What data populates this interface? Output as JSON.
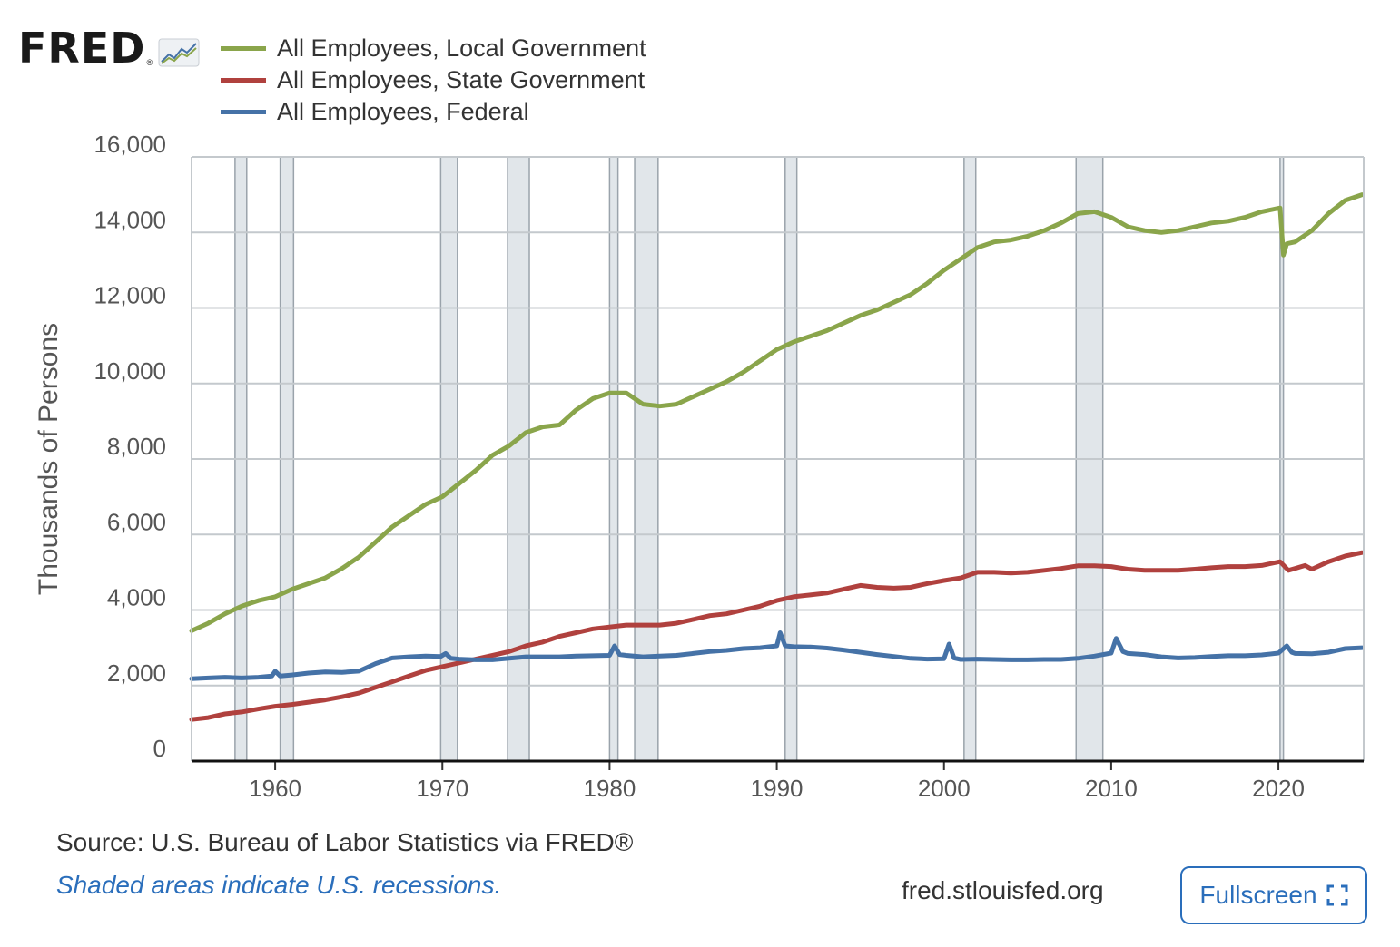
{
  "logo": {
    "text": "FRED",
    "reg": "®"
  },
  "legend": [
    {
      "label": "All Employees, Local Government",
      "color": "#8aa54b"
    },
    {
      "label": "All Employees, State Government",
      "color": "#b0413e"
    },
    {
      "label": "All Employees, Federal",
      "color": "#4572a7"
    }
  ],
  "footer": {
    "source": "Source: U.S. Bureau of Labor Statistics via FRED®",
    "shaded_note": "Shaded areas indicate U.S. recessions.",
    "url": "fred.stlouisfed.org",
    "fullscreen_label": "Fullscreen"
  },
  "chart_data": {
    "type": "line",
    "title": "",
    "xlabel": "",
    "ylabel": "Thousands of Persons",
    "xlim": [
      1955.0,
      2025.1
    ],
    "ylim": [
      0,
      16000
    ],
    "yticks": [
      0,
      2000,
      4000,
      6000,
      8000,
      10000,
      12000,
      14000,
      16000
    ],
    "ytick_labels": [
      "0",
      "2,000",
      "4,000",
      "6,000",
      "8,000",
      "10,000",
      "12,000",
      "14,000",
      "16,000"
    ],
    "xticks": [
      1960,
      1970,
      1980,
      1990,
      2000,
      2010,
      2020
    ],
    "xtick_labels": [
      "1960",
      "1970",
      "1980",
      "1990",
      "2000",
      "2010",
      "2020"
    ],
    "recessions": [
      [
        1957.6,
        1958.3
      ],
      [
        1960.3,
        1961.1
      ],
      [
        1969.9,
        1970.9
      ],
      [
        1973.9,
        1975.2
      ],
      [
        1980.0,
        1980.5
      ],
      [
        1981.5,
        1982.9
      ],
      [
        1990.5,
        1991.2
      ],
      [
        2001.2,
        2001.9
      ],
      [
        2007.9,
        2009.5
      ],
      [
        2020.1,
        2020.3
      ]
    ],
    "series": [
      {
        "name": "All Employees, Local Government",
        "color": "#8aa54b",
        "points": [
          [
            1955.0,
            3450
          ],
          [
            1956.0,
            3650
          ],
          [
            1957.0,
            3900
          ],
          [
            1958.0,
            4100
          ],
          [
            1959.0,
            4250
          ],
          [
            1960.0,
            4350
          ],
          [
            1961.0,
            4550
          ],
          [
            1962.0,
            4700
          ],
          [
            1963.0,
            4850
          ],
          [
            1964.0,
            5100
          ],
          [
            1965.0,
            5400
          ],
          [
            1966.0,
            5800
          ],
          [
            1967.0,
            6200
          ],
          [
            1968.0,
            6500
          ],
          [
            1969.0,
            6800
          ],
          [
            1970.0,
            7000
          ],
          [
            1971.0,
            7350
          ],
          [
            1972.0,
            7700
          ],
          [
            1973.0,
            8100
          ],
          [
            1974.0,
            8350
          ],
          [
            1975.0,
            8700
          ],
          [
            1976.0,
            8850
          ],
          [
            1977.0,
            8900
          ],
          [
            1978.0,
            9300
          ],
          [
            1979.0,
            9600
          ],
          [
            1980.0,
            9750
          ],
          [
            1981.0,
            9750
          ],
          [
            1982.0,
            9450
          ],
          [
            1983.0,
            9400
          ],
          [
            1984.0,
            9450
          ],
          [
            1985.0,
            9650
          ],
          [
            1986.0,
            9850
          ],
          [
            1987.0,
            10050
          ],
          [
            1988.0,
            10300
          ],
          [
            1989.0,
            10600
          ],
          [
            1990.0,
            10900
          ],
          [
            1991.0,
            11100
          ],
          [
            1992.0,
            11250
          ],
          [
            1993.0,
            11400
          ],
          [
            1994.0,
            11600
          ],
          [
            1995.0,
            11800
          ],
          [
            1996.0,
            11950
          ],
          [
            1997.0,
            12150
          ],
          [
            1998.0,
            12350
          ],
          [
            1999.0,
            12650
          ],
          [
            2000.0,
            13000
          ],
          [
            2001.0,
            13300
          ],
          [
            2002.0,
            13600
          ],
          [
            2003.0,
            13750
          ],
          [
            2004.0,
            13800
          ],
          [
            2005.0,
            13900
          ],
          [
            2006.0,
            14050
          ],
          [
            2007.0,
            14250
          ],
          [
            2008.0,
            14500
          ],
          [
            2009.0,
            14550
          ],
          [
            2010.0,
            14400
          ],
          [
            2011.0,
            14150
          ],
          [
            2012.0,
            14050
          ],
          [
            2013.0,
            14000
          ],
          [
            2014.0,
            14050
          ],
          [
            2015.0,
            14150
          ],
          [
            2016.0,
            14250
          ],
          [
            2017.0,
            14300
          ],
          [
            2018.0,
            14400
          ],
          [
            2019.0,
            14550
          ],
          [
            2020.1,
            14650
          ],
          [
            2020.3,
            13400
          ],
          [
            2020.5,
            13700
          ],
          [
            2021.0,
            13750
          ],
          [
            2022.0,
            14050
          ],
          [
            2023.0,
            14500
          ],
          [
            2024.0,
            14850
          ],
          [
            2025.0,
            15000
          ]
        ]
      },
      {
        "name": "All Employees, State Government",
        "color": "#b0413e",
        "points": [
          [
            1955.0,
            1100
          ],
          [
            1956.0,
            1150
          ],
          [
            1957.0,
            1250
          ],
          [
            1958.0,
            1300
          ],
          [
            1959.0,
            1380
          ],
          [
            1960.0,
            1450
          ],
          [
            1961.0,
            1500
          ],
          [
            1962.0,
            1560
          ],
          [
            1963.0,
            1620
          ],
          [
            1964.0,
            1700
          ],
          [
            1965.0,
            1800
          ],
          [
            1966.0,
            1950
          ],
          [
            1967.0,
            2100
          ],
          [
            1968.0,
            2250
          ],
          [
            1969.0,
            2400
          ],
          [
            1970.0,
            2500
          ],
          [
            1971.0,
            2600
          ],
          [
            1972.0,
            2700
          ],
          [
            1973.0,
            2800
          ],
          [
            1974.0,
            2900
          ],
          [
            1975.0,
            3050
          ],
          [
            1976.0,
            3150
          ],
          [
            1977.0,
            3300
          ],
          [
            1978.0,
            3400
          ],
          [
            1979.0,
            3500
          ],
          [
            1980.0,
            3550
          ],
          [
            1981.0,
            3600
          ],
          [
            1982.0,
            3600
          ],
          [
            1983.0,
            3600
          ],
          [
            1984.0,
            3650
          ],
          [
            1985.0,
            3750
          ],
          [
            1986.0,
            3850
          ],
          [
            1987.0,
            3900
          ],
          [
            1988.0,
            4000
          ],
          [
            1989.0,
            4100
          ],
          [
            1990.0,
            4250
          ],
          [
            1991.0,
            4350
          ],
          [
            1992.0,
            4400
          ],
          [
            1993.0,
            4450
          ],
          [
            1994.0,
            4550
          ],
          [
            1995.0,
            4650
          ],
          [
            1996.0,
            4600
          ],
          [
            1997.0,
            4580
          ],
          [
            1998.0,
            4600
          ],
          [
            1999.0,
            4700
          ],
          [
            2000.0,
            4780
          ],
          [
            2001.0,
            4850
          ],
          [
            2002.0,
            5000
          ],
          [
            2003.0,
            5000
          ],
          [
            2004.0,
            4980
          ],
          [
            2005.0,
            5000
          ],
          [
            2006.0,
            5050
          ],
          [
            2007.0,
            5100
          ],
          [
            2008.0,
            5170
          ],
          [
            2009.0,
            5170
          ],
          [
            2010.0,
            5150
          ],
          [
            2011.0,
            5080
          ],
          [
            2012.0,
            5050
          ],
          [
            2013.0,
            5050
          ],
          [
            2014.0,
            5050
          ],
          [
            2015.0,
            5080
          ],
          [
            2016.0,
            5120
          ],
          [
            2017.0,
            5150
          ],
          [
            2018.0,
            5150
          ],
          [
            2019.0,
            5180
          ],
          [
            2020.1,
            5280
          ],
          [
            2020.6,
            5050
          ],
          [
            2021.0,
            5100
          ],
          [
            2021.6,
            5180
          ],
          [
            2022.0,
            5080
          ],
          [
            2023.0,
            5280
          ],
          [
            2024.0,
            5430
          ],
          [
            2025.0,
            5520
          ]
        ]
      },
      {
        "name": "All Employees, Federal",
        "color": "#4572a7",
        "points": [
          [
            1955.0,
            2180
          ],
          [
            1956.0,
            2200
          ],
          [
            1957.0,
            2220
          ],
          [
            1958.0,
            2200
          ],
          [
            1959.0,
            2220
          ],
          [
            1959.8,
            2250
          ],
          [
            1960.0,
            2380
          ],
          [
            1960.3,
            2250
          ],
          [
            1961.0,
            2280
          ],
          [
            1962.0,
            2330
          ],
          [
            1963.0,
            2360
          ],
          [
            1964.0,
            2350
          ],
          [
            1965.0,
            2380
          ],
          [
            1966.0,
            2580
          ],
          [
            1967.0,
            2730
          ],
          [
            1968.0,
            2760
          ],
          [
            1969.0,
            2780
          ],
          [
            1969.9,
            2770
          ],
          [
            1970.2,
            2850
          ],
          [
            1970.5,
            2720
          ],
          [
            1971.0,
            2700
          ],
          [
            1972.0,
            2680
          ],
          [
            1973.0,
            2680
          ],
          [
            1974.0,
            2720
          ],
          [
            1975.0,
            2760
          ],
          [
            1976.0,
            2760
          ],
          [
            1977.0,
            2760
          ],
          [
            1978.0,
            2780
          ],
          [
            1979.0,
            2790
          ],
          [
            1980.0,
            2800
          ],
          [
            1980.3,
            3050
          ],
          [
            1980.6,
            2820
          ],
          [
            1981.0,
            2800
          ],
          [
            1982.0,
            2760
          ],
          [
            1983.0,
            2780
          ],
          [
            1984.0,
            2800
          ],
          [
            1985.0,
            2850
          ],
          [
            1986.0,
            2900
          ],
          [
            1987.0,
            2930
          ],
          [
            1988.0,
            2980
          ],
          [
            1989.0,
            3000
          ],
          [
            1990.0,
            3050
          ],
          [
            1990.2,
            3400
          ],
          [
            1990.5,
            3050
          ],
          [
            1991.0,
            3030
          ],
          [
            1992.0,
            3020
          ],
          [
            1993.0,
            2990
          ],
          [
            1994.0,
            2940
          ],
          [
            1995.0,
            2880
          ],
          [
            1996.0,
            2820
          ],
          [
            1997.0,
            2770
          ],
          [
            1998.0,
            2720
          ],
          [
            1999.0,
            2700
          ],
          [
            2000.0,
            2710
          ],
          [
            2000.3,
            3100
          ],
          [
            2000.6,
            2730
          ],
          [
            2001.0,
            2690
          ],
          [
            2002.0,
            2700
          ],
          [
            2003.0,
            2690
          ],
          [
            2004.0,
            2680
          ],
          [
            2005.0,
            2680
          ],
          [
            2006.0,
            2690
          ],
          [
            2007.0,
            2690
          ],
          [
            2008.0,
            2720
          ],
          [
            2009.0,
            2780
          ],
          [
            2010.0,
            2860
          ],
          [
            2010.3,
            3250
          ],
          [
            2010.7,
            2900
          ],
          [
            2011.0,
            2850
          ],
          [
            2012.0,
            2820
          ],
          [
            2013.0,
            2760
          ],
          [
            2014.0,
            2730
          ],
          [
            2015.0,
            2740
          ],
          [
            2016.0,
            2770
          ],
          [
            2017.0,
            2790
          ],
          [
            2018.0,
            2790
          ],
          [
            2019.0,
            2810
          ],
          [
            2020.0,
            2860
          ],
          [
            2020.5,
            3050
          ],
          [
            2020.8,
            2880
          ],
          [
            2021.0,
            2850
          ],
          [
            2022.0,
            2840
          ],
          [
            2023.0,
            2880
          ],
          [
            2024.0,
            2980
          ],
          [
            2025.0,
            3000
          ]
        ]
      }
    ]
  }
}
